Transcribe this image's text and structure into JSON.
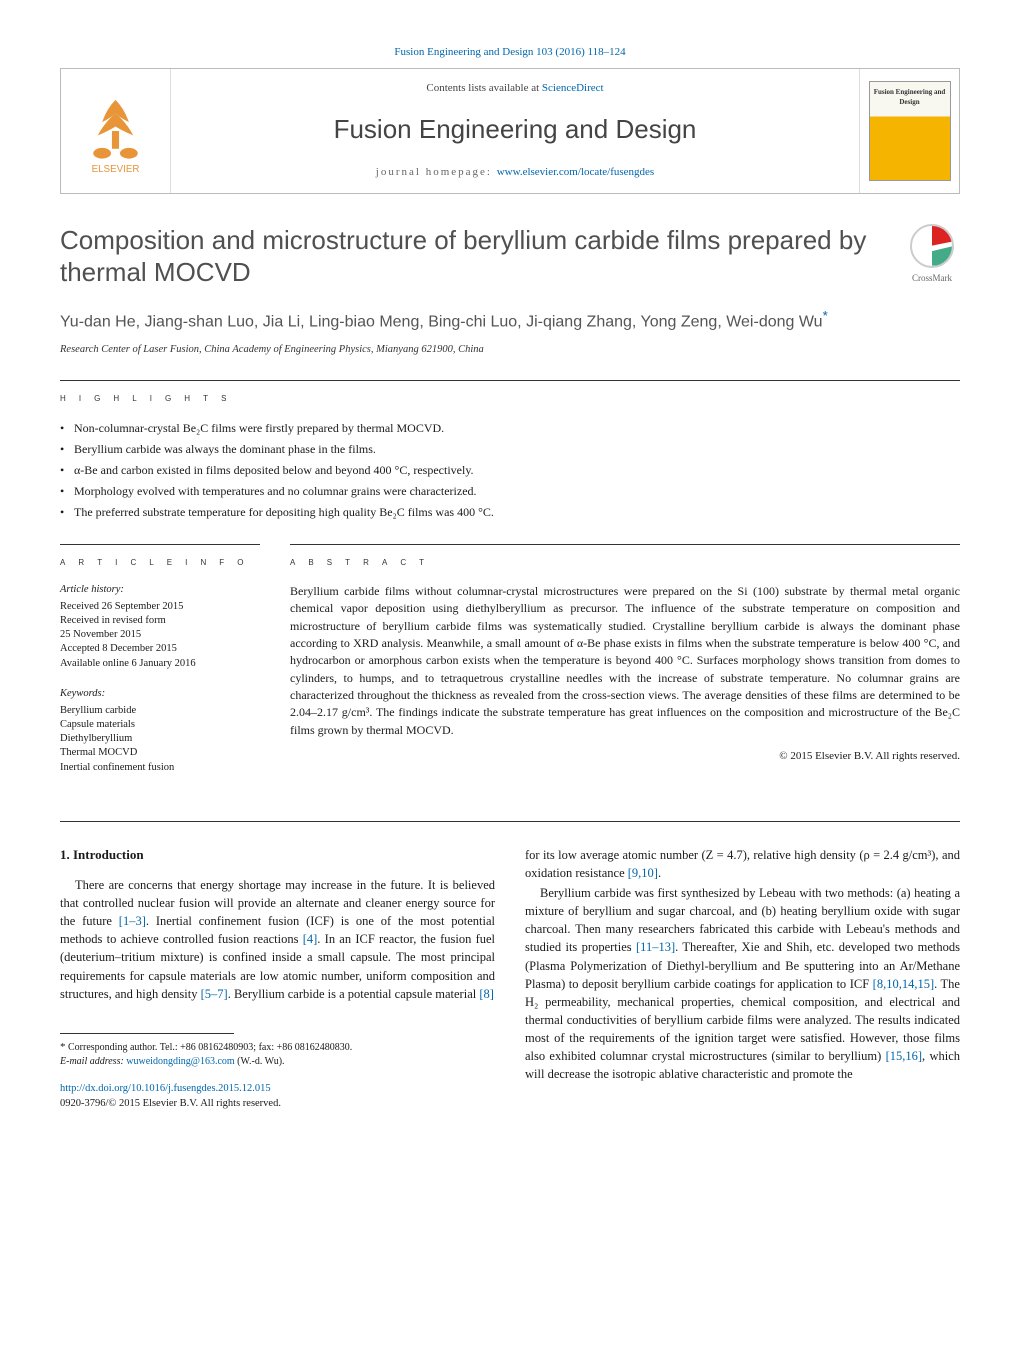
{
  "citation": "Fusion Engineering and Design 103 (2016) 118–124",
  "banner": {
    "contents_prefix": "Contents lists available at ",
    "contents_link": "ScienceDirect",
    "journal": "Fusion Engineering and Design",
    "homepage_prefix": "journal homepage: ",
    "homepage_url": "www.elsevier.com/locate/fusengdes",
    "cover_title": "Fusion Engineering and Design"
  },
  "crossmark": "CrossMark",
  "title": "Composition and microstructure of beryllium carbide films prepared by thermal MOCVD",
  "authors": "Yu-dan He, Jiang-shan Luo, Jia Li, Ling-biao Meng, Bing-chi Luo, Ji-qiang Zhang, Yong Zeng, Wei-dong Wu",
  "corr_mark": "*",
  "affiliation": "Research Center of Laser Fusion, China Academy of Engineering Physics, Mianyang 621900, China",
  "labels": {
    "highlights": "h i g h l i g h t s",
    "article_info": "a r t i c l e   i n f o",
    "abstract": "a b s t r a c t"
  },
  "highlights": [
    "Non-columnar-crystal Be₂C films were firstly prepared by thermal MOCVD.",
    "Beryllium carbide was always the dominant phase in the films.",
    "α-Be and carbon existed in films deposited below and beyond 400 °C, respectively.",
    "Morphology evolved with temperatures and no columnar grains were characterized.",
    "The preferred substrate temperature for depositing high quality Be₂C films was 400 °C."
  ],
  "history": {
    "title": "Article history:",
    "lines": [
      "Received 26 September 2015",
      "Received in revised form",
      "25 November 2015",
      "Accepted 8 December 2015",
      "Available online 6 January 2016"
    ]
  },
  "keywords": {
    "title": "Keywords:",
    "items": [
      "Beryllium carbide",
      "Capsule materials",
      "Diethylberyllium",
      "Thermal MOCVD",
      "Inertial confinement fusion"
    ]
  },
  "abstract": "Beryllium carbide films without columnar-crystal microstructures were prepared on the Si (100) substrate by thermal metal organic chemical vapor deposition using diethylberyllium as precursor. The influence of the substrate temperature on composition and microstructure of beryllium carbide films was systematically studied. Crystalline beryllium carbide is always the dominant phase according to XRD analysis. Meanwhile, a small amount of α-Be phase exists in films when the substrate temperature is below 400 °C, and hydrocarbon or amorphous carbon exists when the temperature is beyond 400 °C. Surfaces morphology shows transition from domes to cylinders, to humps, and to tetraquetrous crystalline needles with the increase of substrate temperature. No columnar grains are characterized throughout the thickness as revealed from the cross-section views. The average densities of these films are determined to be 2.04–2.17 g/cm³. The findings indicate the substrate temperature has great influences on the composition and microstructure of the Be₂C films grown by thermal MOCVD.",
  "copyright": "© 2015 Elsevier B.V. All rights reserved.",
  "intro_heading": "1. Introduction",
  "intro_p1_a": "There are concerns that energy shortage may increase in the future. It is believed that controlled nuclear fusion will provide an alternate and cleaner energy source for the future ",
  "intro_p1_c1": "[1–3]",
  "intro_p1_b": ". Inertial confinement fusion (ICF) is one of the most potential methods to achieve controlled fusion reactions ",
  "intro_p1_c2": "[4]",
  "intro_p1_c": ". In an ICF reactor, the fusion fuel (deuterium–tritium mixture) is confined inside a small capsule. The most principal requirements for capsule materials are low atomic number, uniform composition and structures, and high density ",
  "intro_p1_c3": "[5–7]",
  "intro_p1_d": ". Beryllium carbide is a potential capsule material ",
  "intro_p1_c4": "[8]",
  "intro_p2_a": "for its low average atomic number (Z = 4.7), relative high density (ρ = 2.4 g/cm³), and oxidation resistance ",
  "intro_p2_c1": "[9,10]",
  "intro_p2_b": ".",
  "intro_p3_a": "Beryllium carbide was first synthesized by Lebeau with two methods: (a) heating a mixture of beryllium and sugar charcoal, and (b) heating beryllium oxide with sugar charcoal. Then many researchers fabricated this carbide with Lebeau's methods and studied its properties ",
  "intro_p3_c1": "[11–13]",
  "intro_p3_b": ". Thereafter, Xie and Shih, etc. developed two methods (Plasma Polymerization of Diethyl-beryllium and Be sputtering into an Ar/Methane Plasma) to deposit beryllium carbide coatings for application to ICF ",
  "intro_p3_c2": "[8,10,14,15]",
  "intro_p3_c": ". The H₂ permeability, mechanical properties, chemical composition, and electrical and thermal conductivities of beryllium carbide films were analyzed. The results indicated most of the requirements of the ignition target were satisfied. However, those films also exhibited columnar crystal microstructures (similar to beryllium) ",
  "intro_p3_c3": "[15,16]",
  "intro_p3_d": ", which will decrease the isotropic ablative characteristic and promote the",
  "footnote": {
    "corr": "Corresponding author. Tel.: +86 08162480903; fax: +86 08162480830.",
    "email_label": "E-mail address:",
    "email": "wuweidongding@163.com",
    "email_suffix": "(W.-d. Wu)."
  },
  "doi": {
    "url": "http://dx.doi.org/10.1016/j.fusengdes.2015.12.015",
    "issn_line": "0920-3796/© 2015 Elsevier B.V. All rights reserved."
  },
  "colors": {
    "link": "#0066aa",
    "text": "#1a1a1a",
    "heading_grey": "#505050"
  }
}
